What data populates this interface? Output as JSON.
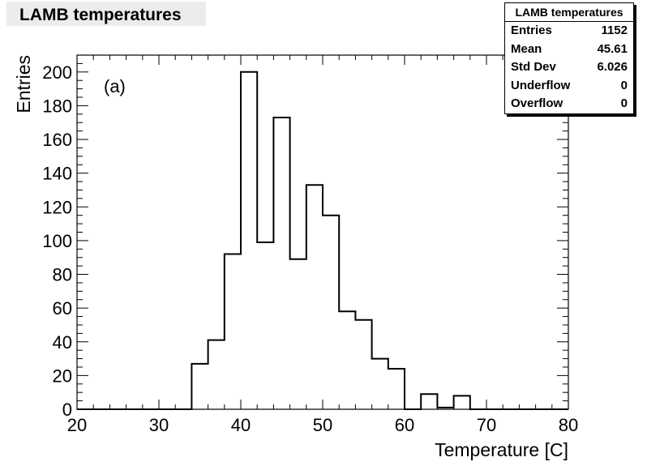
{
  "title": "LAMB temperatures",
  "stats": {
    "title": "LAMB temperatures",
    "rows": [
      {
        "label": "Entries",
        "value": "1152"
      },
      {
        "label": "Mean",
        "value": "45.61"
      },
      {
        "label": "Std Dev",
        "value": "6.026"
      },
      {
        "label": "Underflow",
        "value": "0"
      },
      {
        "label": "Overflow",
        "value": "0"
      }
    ]
  },
  "chart_data": {
    "type": "bar",
    "histogram": true,
    "title": "LAMB temperatures",
    "annotation": "(a)",
    "xlabel": "Temperature [C]",
    "ylabel": "Entries",
    "xlim": [
      20,
      80
    ],
    "ylim": [
      0,
      210
    ],
    "xticks": [
      20,
      30,
      40,
      50,
      60,
      70,
      80
    ],
    "yticks": [
      0,
      20,
      40,
      60,
      80,
      100,
      120,
      140,
      160,
      180,
      200
    ],
    "bin_edges": [
      34,
      36,
      38,
      40,
      42,
      44,
      46,
      48,
      50,
      52,
      54,
      56,
      58,
      60,
      62,
      64,
      66,
      68
    ],
    "values": [
      27,
      41,
      92,
      200,
      99,
      173,
      89,
      133,
      115,
      58,
      53,
      30,
      24,
      0,
      9,
      1,
      8
    ],
    "grid": false,
    "stats_box": "top-right"
  }
}
